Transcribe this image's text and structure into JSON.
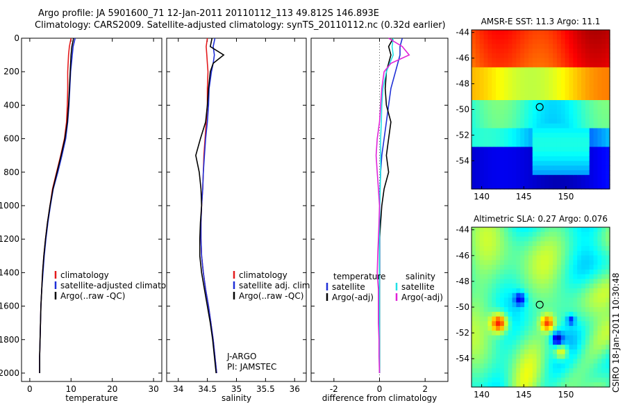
{
  "title_line1": "Argo profile: JA 5901600_71 12-Jan-2011 20110112_113 49.812S 146.893E",
  "title_line2": "Climatology: CARS2009. Satellite-adjusted climatology: synTS_20110112.nc (0.32d earlier)",
  "watermark": "CSIRO 18-Jan-2011 10:30:48",
  "float_info": [
    "J-ARGO",
    "PI: JAMSTEC"
  ],
  "colors": {
    "clim": "#e31a1c",
    "sat": "#1f2fd6",
    "argo": "#000000",
    "sat_diff": "#22e0e6",
    "argo_diff": "#e022d8",
    "ref_line": "#555555"
  },
  "chart_data": [
    {
      "type": "line",
      "id": "temperature",
      "xlabel": "temperature",
      "xlim": [
        -2,
        32
      ],
      "ylim": [
        0,
        2050
      ],
      "xticks": [
        0,
        10,
        20,
        30
      ],
      "yticks": [
        0,
        200,
        400,
        600,
        800,
        1000,
        1200,
        1400,
        1600,
        1800,
        2000
      ],
      "depth": [
        0,
        50,
        100,
        150,
        200,
        300,
        400,
        500,
        600,
        700,
        800,
        900,
        1000,
        1100,
        1200,
        1300,
        1400,
        1500,
        1600,
        1700,
        1800,
        1900,
        2000
      ],
      "legend": [
        "climatology",
        "satellite-adjusted climatology",
        "Argo(..raw -QC)"
      ],
      "series": [
        {
          "name": "climatology",
          "color_key": "clim",
          "values": [
            10.0,
            9.6,
            9.4,
            9.3,
            9.2,
            9.2,
            9.1,
            8.9,
            8.4,
            7.5,
            6.5,
            5.5,
            4.9,
            4.3,
            3.8,
            3.4,
            3.1,
            2.9,
            2.7,
            2.6,
            2.5,
            2.4,
            2.4
          ]
        },
        {
          "name": "satellite-adjusted climatology",
          "color_key": "sat",
          "values": [
            11.0,
            10.5,
            10.3,
            10.1,
            9.9,
            9.7,
            9.5,
            9.2,
            8.7,
            7.8,
            6.8,
            5.7,
            5.0,
            4.4,
            3.9,
            3.5,
            3.2,
            2.9,
            2.7,
            2.6,
            2.5,
            2.4,
            2.4
          ]
        },
        {
          "name": "Argo(..raw -QC)",
          "color_key": "argo",
          "values": [
            10.6,
            10.2,
            10.0,
            9.9,
            9.8,
            9.6,
            9.4,
            9.1,
            8.5,
            7.6,
            6.6,
            5.6,
            4.9,
            4.3,
            3.8,
            3.4,
            3.1,
            2.9,
            2.7,
            2.6,
            2.5,
            2.4,
            2.4
          ]
        }
      ]
    },
    {
      "type": "line",
      "id": "salinity",
      "xlabel": "salinity",
      "xlim": [
        33.8,
        36.2
      ],
      "ylim": [
        0,
        2050
      ],
      "xticks": [
        34,
        34.5,
        35,
        35.5,
        36
      ],
      "depth": [
        0,
        50,
        100,
        150,
        200,
        300,
        400,
        500,
        600,
        700,
        800,
        900,
        1000,
        1100,
        1200,
        1300,
        1400,
        1500,
        1600,
        1700,
        1800,
        1900,
        2000
      ],
      "legend": [
        "climatology",
        "satellite adj. clim.",
        "Argo(..raw -QC)"
      ],
      "series": [
        {
          "name": "climatology",
          "color_key": "clim",
          "values": [
            34.5,
            34.48,
            34.49,
            34.5,
            34.51,
            34.5,
            34.5,
            34.48,
            34.46,
            34.44,
            34.43,
            34.42,
            34.4,
            34.39,
            34.39,
            34.4,
            34.43,
            34.47,
            34.52,
            34.56,
            34.6,
            34.63,
            34.66
          ]
        },
        {
          "name": "satellite adj. clim.",
          "color_key": "sat",
          "values": [
            34.63,
            34.6,
            34.62,
            34.6,
            34.57,
            34.53,
            34.52,
            34.5,
            34.47,
            34.45,
            34.43,
            34.42,
            34.4,
            34.39,
            34.39,
            34.4,
            34.43,
            34.47,
            34.52,
            34.56,
            34.6,
            34.63,
            34.66
          ]
        },
        {
          "name": "Argo(..raw -QC)",
          "color_key": "argo",
          "values": [
            34.58,
            34.55,
            34.78,
            34.6,
            34.55,
            34.52,
            34.5,
            34.47,
            34.38,
            34.3,
            34.36,
            34.39,
            34.4,
            34.38,
            34.37,
            34.37,
            34.4,
            34.45,
            34.5,
            34.55,
            34.59,
            34.62,
            34.65
          ]
        }
      ]
    },
    {
      "type": "line",
      "id": "difference",
      "xlabel": "difference from climatology",
      "xlim": [
        -3,
        3
      ],
      "ylim": [
        0,
        2050
      ],
      "xticks": [
        -2,
        0,
        2
      ],
      "depth": [
        0,
        50,
        100,
        150,
        200,
        300,
        400,
        500,
        600,
        700,
        800,
        900,
        1000,
        1100,
        1200,
        1300,
        1400,
        1500,
        1600,
        1700,
        1800,
        1900,
        2000
      ],
      "legend_headers": [
        "temperature",
        "salinity"
      ],
      "legend": [
        "satellite",
        "Argo(-adj)",
        "satellite",
        "Argo(-adj)"
      ],
      "series": [
        {
          "name": "temperature satellite",
          "color_key": "sat",
          "values": [
            1.0,
            0.9,
            0.9,
            0.8,
            0.7,
            0.5,
            0.4,
            0.3,
            0.2,
            0.1,
            0.05,
            0.02,
            0.01,
            0.01,
            0.01,
            0.01,
            0.01,
            0.0,
            0.0,
            0.0,
            0.0,
            0.0,
            0.0
          ]
        },
        {
          "name": "temperature Argo(-adj)",
          "color_key": "argo",
          "values": [
            0.6,
            0.4,
            0.5,
            0.4,
            0.3,
            0.25,
            0.3,
            0.5,
            0.4,
            0.3,
            0.4,
            0.2,
            0.1,
            0.05,
            0.0,
            0.0,
            0.0,
            0.0,
            0.0,
            0.0,
            0.0,
            0.0,
            0.0
          ]
        },
        {
          "name": "salinity satellite",
          "color_key": "sat_diff",
          "values": [
            0.6,
            0.55,
            0.6,
            0.45,
            0.3,
            0.15,
            0.1,
            0.08,
            0.05,
            0.05,
            0.05,
            0.03,
            0.01,
            0.0,
            0.0,
            0.0,
            0.0,
            0.0,
            0.0,
            0.0,
            0.0,
            0.0,
            0.0
          ]
        },
        {
          "name": "salinity Argo(-adj)",
          "color_key": "argo_diff",
          "values": [
            0.4,
            1.0,
            1.3,
            0.5,
            0.2,
            0.1,
            0.05,
            0.0,
            -0.1,
            -0.15,
            -0.1,
            -0.05,
            0.0,
            -0.02,
            -0.05,
            -0.08,
            -0.1,
            -0.05,
            -0.05,
            -0.05,
            -0.02,
            -0.02,
            0.0
          ]
        }
      ]
    },
    {
      "type": "heatmap",
      "id": "sst",
      "title": "AMSR-E SST: 11.3 Argo: 11.1",
      "xticks": [
        140,
        145,
        150
      ],
      "yticks": [
        -44,
        -46,
        -48,
        -50,
        -52,
        -54
      ],
      "xlim": [
        138.8,
        155.2
      ],
      "ylim": [
        -56.2,
        -43.8
      ],
      "marker": [
        146.89,
        -49.81
      ]
    },
    {
      "type": "heatmap",
      "id": "sla",
      "title": "Altimetric SLA: 0.27 Argo: 0.076",
      "xticks": [
        140,
        145,
        150
      ],
      "yticks": [
        -44,
        -46,
        -48,
        -50,
        -52,
        -54
      ],
      "xlim": [
        138.8,
        155.2
      ],
      "ylim": [
        -56.2,
        -43.8
      ],
      "marker": [
        146.89,
        -49.81
      ]
    }
  ]
}
